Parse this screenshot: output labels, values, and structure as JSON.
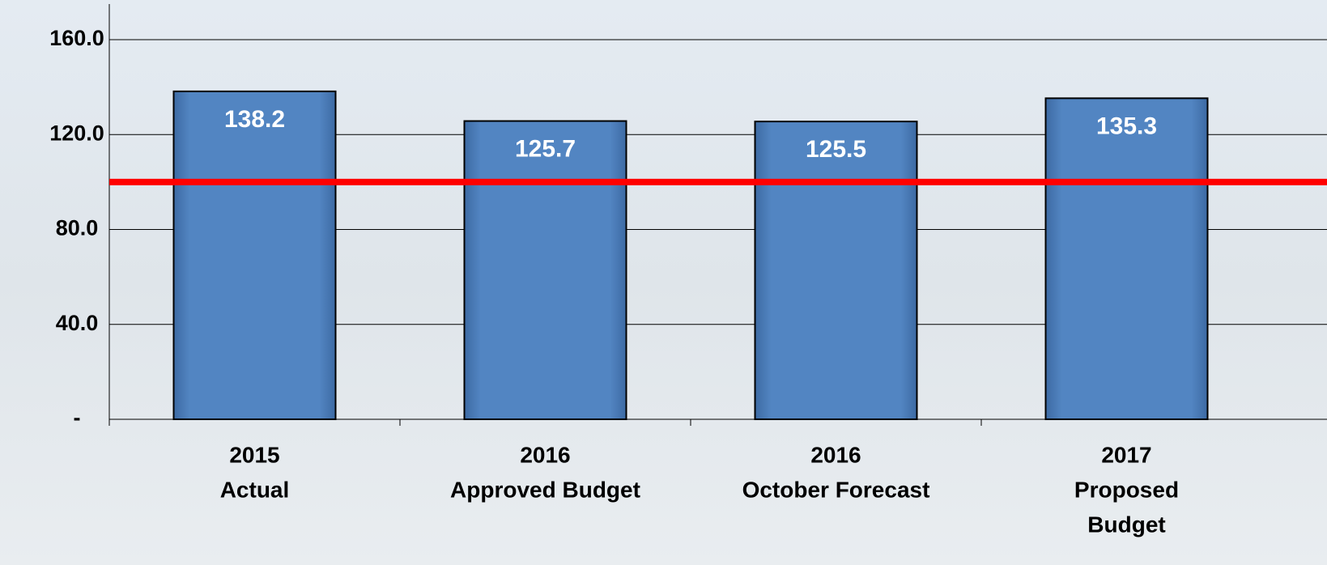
{
  "chart_data": {
    "type": "bar",
    "categories": [
      [
        "2015",
        "Actual"
      ],
      [
        "2016",
        "Approved Budget"
      ],
      [
        "2016",
        "October Forecast"
      ],
      [
        "2017",
        "Proposed",
        "Budget"
      ]
    ],
    "values": [
      138.2,
      125.7,
      125.5,
      135.3
    ],
    "color": "#4f81bd",
    "reference_line": {
      "value": 100,
      "color": "#ff0000"
    },
    "ylim": [
      0,
      175
    ],
    "yticks": [
      {
        "value": 0,
        "label": "-"
      },
      {
        "value": 40,
        "label": "40.0"
      },
      {
        "value": 80,
        "label": "80.0"
      },
      {
        "value": 120,
        "label": "120.0"
      },
      {
        "value": 160,
        "label": "160.0"
      }
    ],
    "grid": true
  }
}
